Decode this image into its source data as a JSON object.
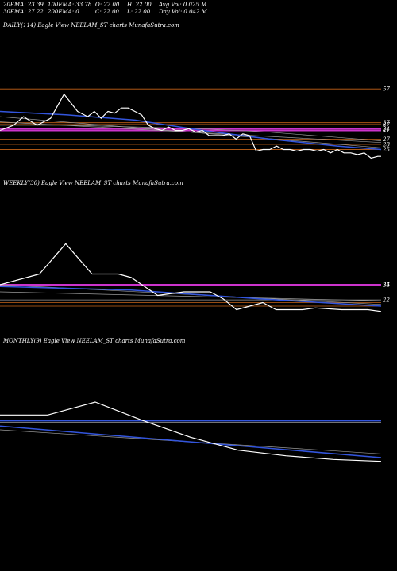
{
  "header": {
    "ema20": "20EMA: 23.39",
    "ema100": "100EMA: 33.78",
    "open": "O: 22.00",
    "high": "H: 22.00",
    "avg_vol": "Avg Vol: 0.025 M",
    "ema30": "30EMA: 27.22",
    "ema200": "200EMA: 0",
    "close": "C: 22.00",
    "low": "L: 22.00",
    "day_vol": "Day Vol: 0.042 M"
  },
  "panels": {
    "daily": {
      "title": "DAILY(114) Eagle View NEELAM_ST charts MunafaSutra.com"
    },
    "weekly": {
      "title": "WEEKLY(30) Eagle View NEELAM_ST charts MunafaSutra.com"
    },
    "monthly": {
      "title": "MONTHLY(9) Eagle View NEELAM_ST charts MunafaSutra.com"
    }
  },
  "colors": {
    "background": "#000000",
    "price": "#ffffff",
    "ema_blue": "#3355dd",
    "level_orange": "#c86418",
    "level_magenta": "#cc33cc",
    "level_gray": "#9a9a9a"
  },
  "chart_data": [
    {
      "type": "line",
      "title": "DAILY(114) Eagle View NEELAM_ST charts MunafaSutra.com",
      "ylim": [
        19,
        58
      ],
      "tick_labels": [
        "57",
        "37",
        "37",
        "34",
        "41",
        "27",
        "28",
        "25",
        "22"
      ],
      "horizontal_levels": [
        {
          "value": 57,
          "color": "#c86418"
        },
        {
          "value": 37.5,
          "color": "#c86418"
        },
        {
          "value": 36.5,
          "color": "#c86418"
        },
        {
          "value": 34,
          "color": "#cc33cc"
        },
        {
          "value": 33,
          "color": "#cc33cc"
        },
        {
          "value": 28,
          "color": "#c86418"
        },
        {
          "value": 25,
          "color": "#c86418"
        },
        {
          "value": 22,
          "color": "#c86418"
        }
      ],
      "series": [
        {
          "x": [
            0,
            4,
            7,
            11,
            15,
            19,
            23,
            26,
            28,
            30,
            32,
            34,
            36,
            38,
            40,
            42,
            44,
            46,
            48,
            50,
            52,
            54,
            56,
            58,
            60,
            62,
            64,
            66,
            68,
            70,
            72,
            74,
            76,
            78,
            80,
            82,
            84,
            86,
            88,
            90,
            92,
            94,
            96,
            98,
            100,
            102,
            104,
            106,
            108,
            110,
            112,
            113
          ],
          "y": [
            33,
            36,
            41,
            36,
            40,
            54,
            44,
            41,
            44,
            40,
            44,
            43,
            46,
            46,
            44,
            42,
            36,
            34,
            33,
            35,
            33,
            33,
            34,
            32,
            33,
            30,
            30,
            30,
            31,
            28,
            31,
            30,
            21,
            22,
            22,
            24,
            22,
            22,
            21,
            22,
            22,
            21,
            22,
            20,
            22,
            20,
            20,
            19,
            20,
            17,
            18,
            18
          ]
        },
        {
          "x": [
            0,
            20,
            40,
            60,
            80,
            100,
            113
          ],
          "y": [
            44,
            42,
            39,
            33,
            28,
            24,
            22
          ]
        },
        {
          "x": [
            0,
            20,
            40,
            60,
            80,
            100,
            113
          ],
          "y": [
            36,
            36,
            35,
            34,
            32,
            29,
            27
          ]
        },
        {
          "x": [
            0,
            113
          ],
          "y": [
            41,
            23
          ]
        },
        {
          "x": [
            0,
            113
          ],
          "y": [
            38,
            26
          ]
        }
      ]
    },
    {
      "type": "line",
      "title": "WEEKLY(30) Eagle View NEELAM_ST charts MunafaSutra.com",
      "ylim": [
        18,
        58
      ],
      "tick_labels": [
        "34",
        "25",
        "22"
      ],
      "horizontal_levels": [
        {
          "value": 34,
          "color": "#c86418"
        },
        {
          "value": 34.0,
          "color": "#cc33cc"
        },
        {
          "value": 25.5,
          "color": "#9a9a9a"
        },
        {
          "value": 24,
          "color": "#c86418"
        },
        {
          "value": 22,
          "color": "#c86418"
        }
      ],
      "series": [
        {
          "x": [
            0,
            3,
            5,
            7,
            9,
            10,
            12,
            14,
            16,
            17,
            18,
            19,
            20,
            21,
            23,
            24,
            26,
            28,
            29
          ],
          "y": [
            34,
            40,
            57,
            40,
            40,
            38,
            28,
            30,
            30,
            26,
            20,
            22,
            24,
            20,
            20,
            21,
            20,
            20,
            19
          ]
        },
        {
          "x": [
            0,
            10,
            20,
            29
          ],
          "y": [
            33,
            31,
            26,
            22
          ]
        },
        {
          "x": [
            0,
            29
          ],
          "y": [
            34,
            23
          ]
        },
        {
          "x": [
            0,
            29
          ],
          "y": [
            30,
            25
          ]
        }
      ]
    },
    {
      "type": "line",
      "title": "MONTHLY(9) Eagle View NEELAM_ST charts MunafaSutra.com",
      "ylim": [
        15,
        60
      ],
      "tick_labels": [],
      "horizontal_levels": [
        {
          "value": 47,
          "color": "#3355dd"
        },
        {
          "value": 46,
          "color": "#9a9a9a"
        }
      ],
      "series": [
        {
          "x": [
            0,
            1,
            2,
            3,
            4,
            5,
            6,
            7,
            8
          ],
          "y": [
            50,
            50,
            57,
            47,
            38,
            31,
            28,
            26,
            25
          ]
        },
        {
          "x": [
            0,
            8
          ],
          "y": [
            44,
            27
          ]
        },
        {
          "x": [
            0,
            8
          ],
          "y": [
            42,
            29
          ]
        }
      ]
    }
  ]
}
